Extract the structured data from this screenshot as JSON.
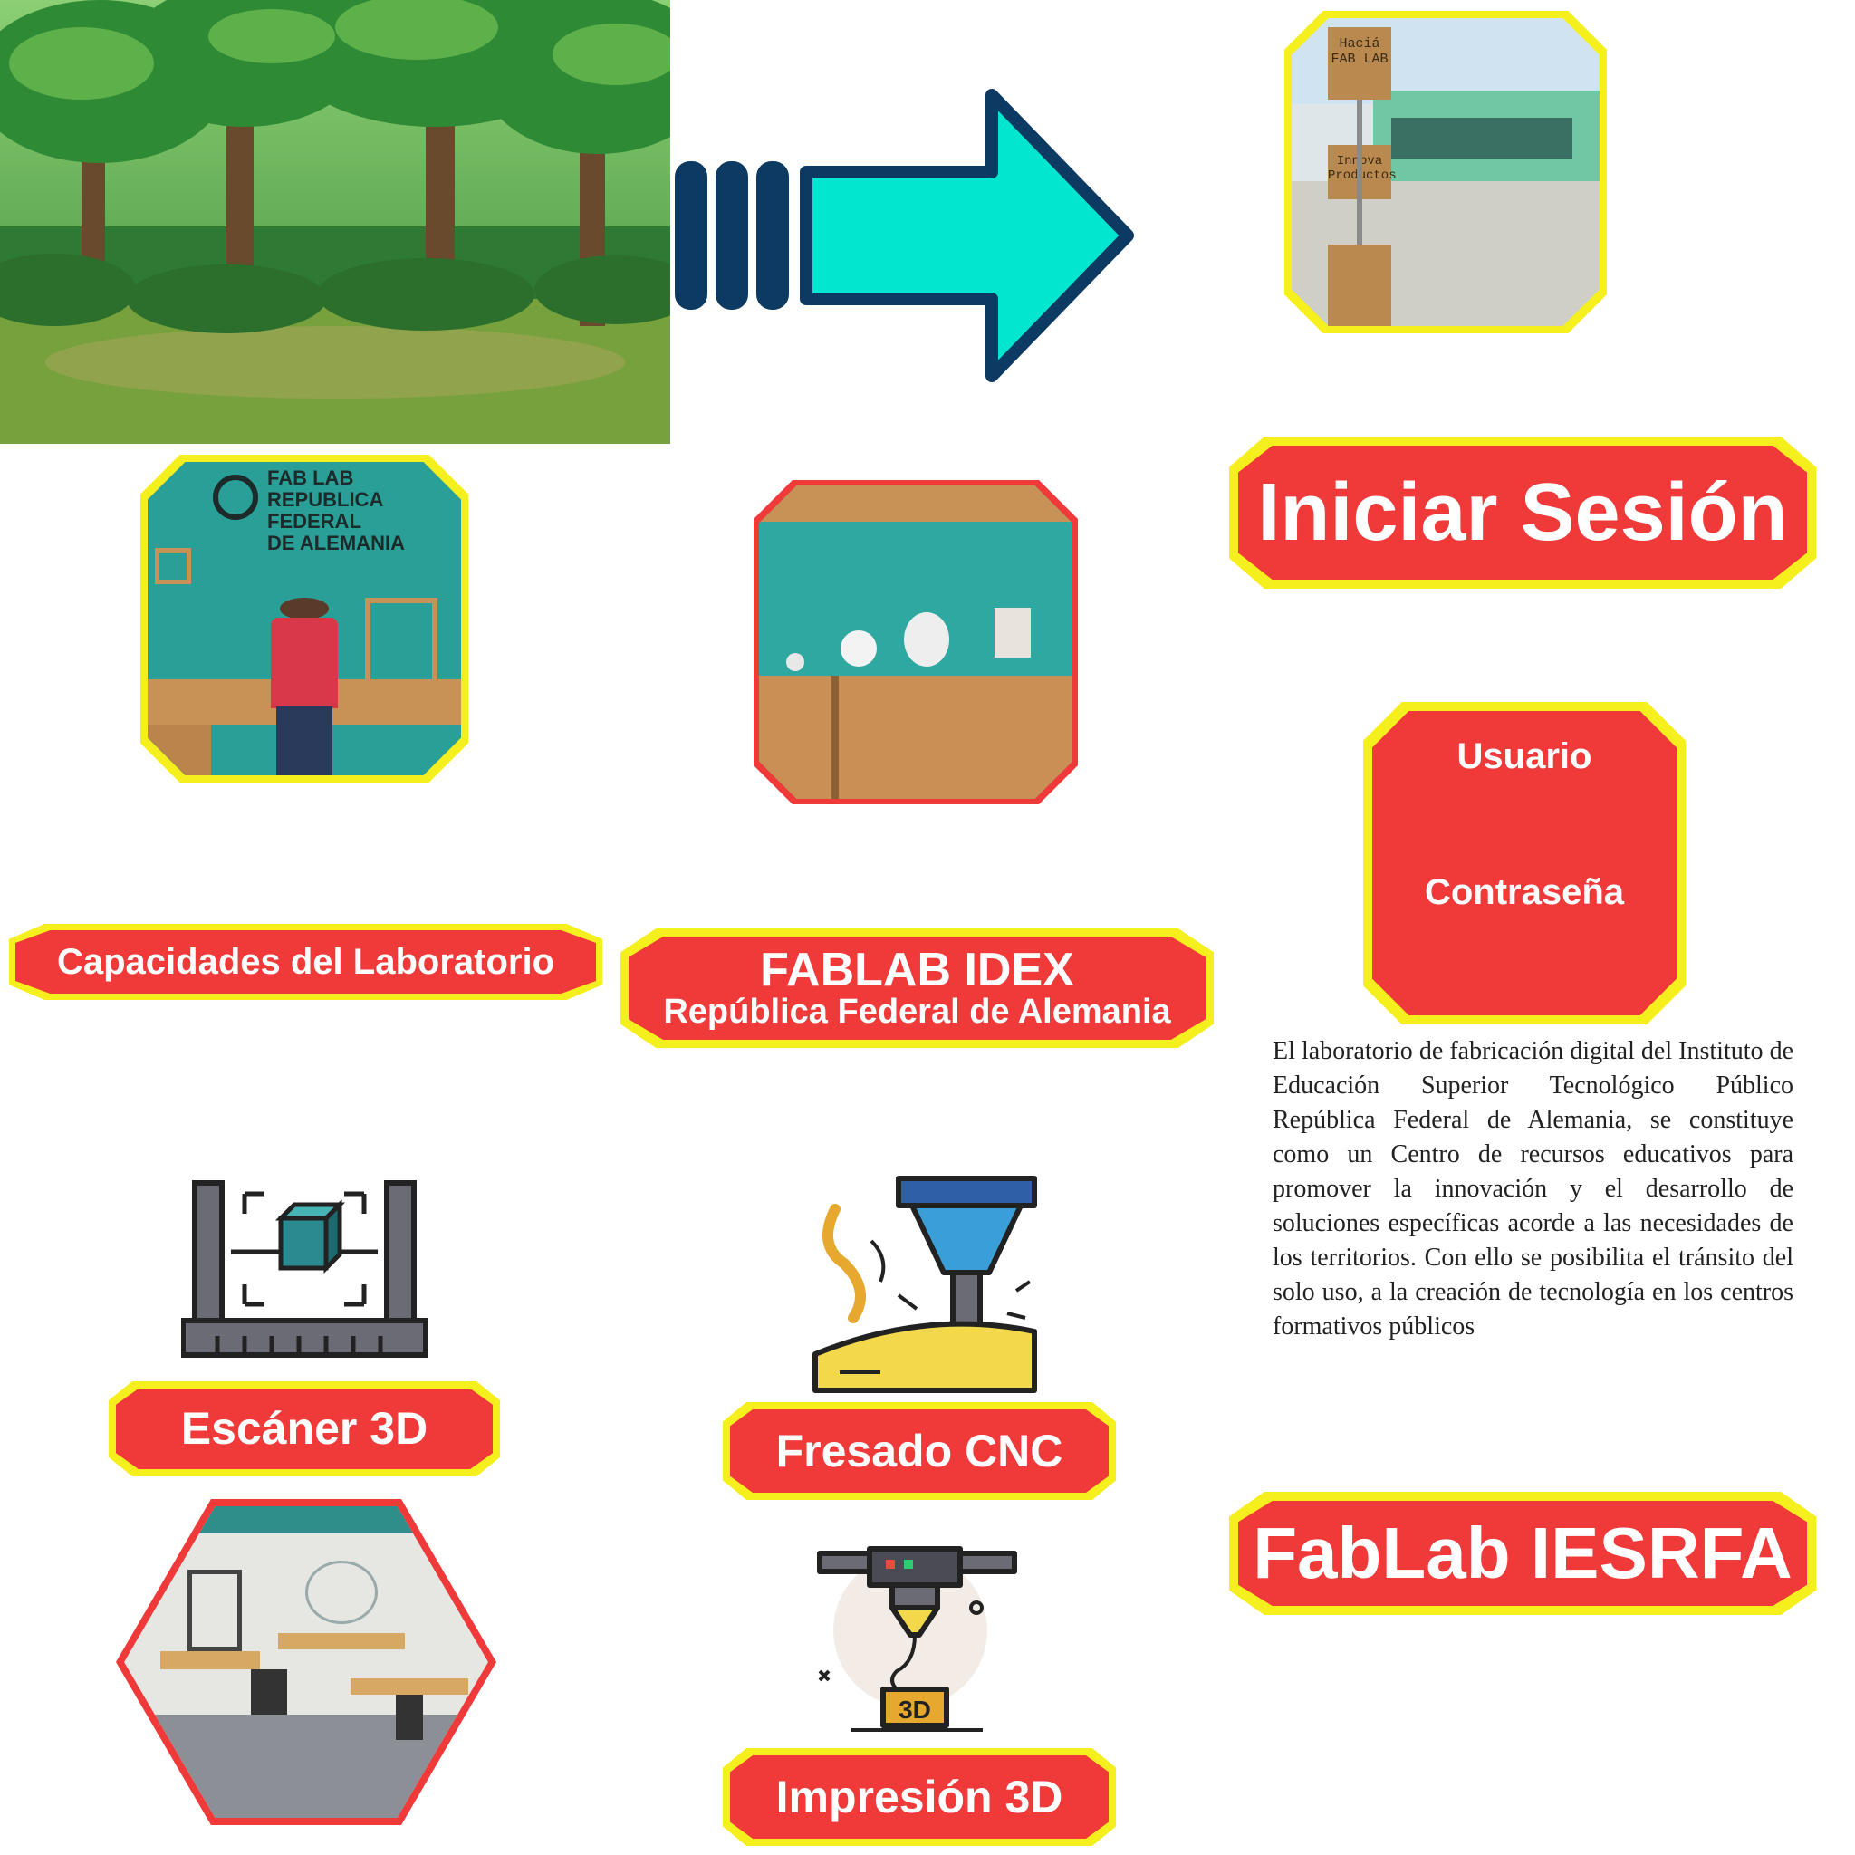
{
  "colors": {
    "frame": "#f5ef1e",
    "button": "#f03a3a",
    "arrow_fill": "#00e6cf",
    "arrow_stroke": "#0d3a63",
    "wall": "#2a9f97"
  },
  "scene": {
    "forest_image": "forest-scene",
    "arrow": "arrow-right-icon"
  },
  "photos": {
    "entrance_sign": [
      "Haciá",
      "FAB LAB",
      "Innova",
      "Productos"
    ],
    "wall_sign": [
      "FAB LAB",
      "REPUBLICA FEDERAL",
      "DE ALEMANIA"
    ]
  },
  "labels": {
    "login": "Iniciar Sesión",
    "user": "Usuario",
    "password": "Contraseña",
    "capacities": "Capacidades del Laboratorio",
    "fablab_title": "FABLAB IDEX",
    "fablab_subtitle": "República Federal de Alemania",
    "scanner": "Escáner 3D",
    "cnc": "Fresado CNC",
    "printing": "Impresión 3D",
    "footer": "FabLab IESRFA"
  },
  "description": "El laboratorio de fabricación digital del Instituto de Educación Superior Tecnológico Público República Federal de Alemania, se constituye como un Centro de recursos educativos para promover la innovación y el desarrollo de soluciones específicas acorde a las necesidades de los territorios. Con ello se posibilita el tránsito del solo uso, a la creación de tecnología en los centros formativos públicos",
  "icons": {
    "scanner": "3d-scanner-icon",
    "cnc": "cnc-mill-icon",
    "printer": "3d-printer-icon",
    "printer_badge": "3D"
  }
}
